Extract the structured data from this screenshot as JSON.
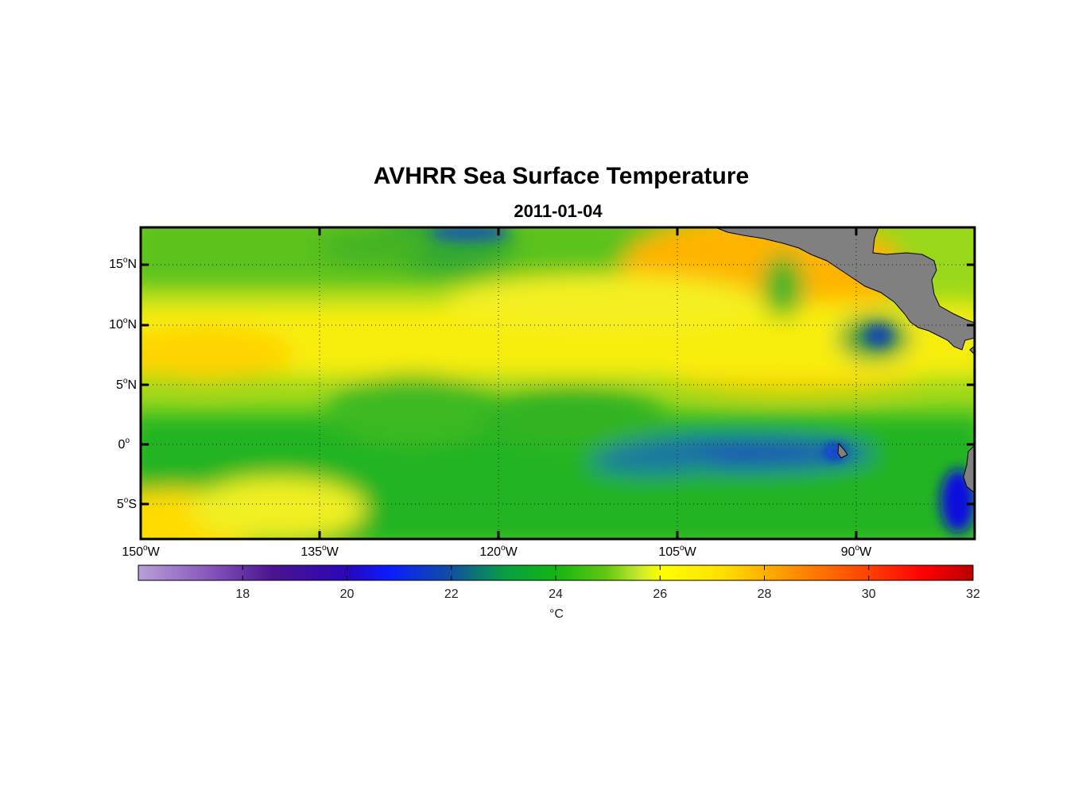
{
  "title": "AVHRR Sea Surface Temperature",
  "subtitle": "2011-01-04",
  "lat_labels": [
    {
      "value": "15",
      "hemi": "N"
    },
    {
      "value": "10",
      "hemi": "N"
    },
    {
      "value": "5",
      "hemi": "N"
    },
    {
      "value": "0",
      "hemi": ""
    },
    {
      "value": "5",
      "hemi": "S"
    }
  ],
  "lon_labels": [
    "150",
    "135",
    "120",
    "105",
    "90"
  ],
  "lon_suffix": "W",
  "colorbar": {
    "ticks": [
      "18",
      "20",
      "22",
      "24",
      "26",
      "28",
      "30",
      "32"
    ],
    "unit": "°C",
    "min": 16,
    "max": 32
  },
  "colors": {
    "land": "#808080",
    "cold": "#2030c8",
    "green": "#1ea81e",
    "yellow": "#ffff00",
    "warm": "#ff9a00"
  }
}
